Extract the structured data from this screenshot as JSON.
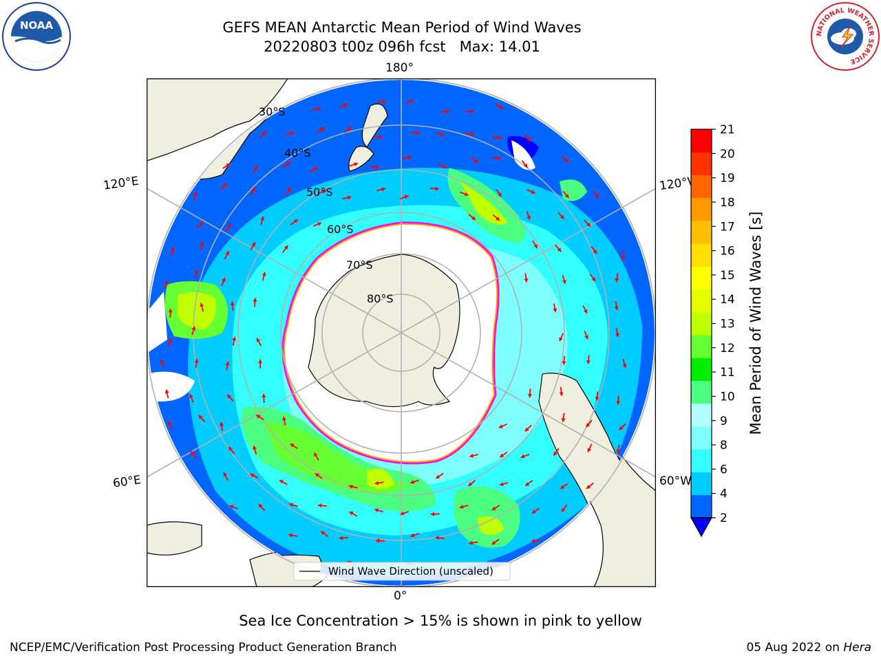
{
  "header": {
    "title_line1": "GEFS MEAN Antarctic Mean Period of Wind Waves",
    "title_line2": "20220803 t00z 096h fcst   Max: 14.01"
  },
  "logos": {
    "noaa_text": "NOAA",
    "nws_ring_text": "NATIONAL WEATHER SERVICE"
  },
  "map": {
    "projection": "south-polar-stereographic",
    "land_color": "#efefdf",
    "ocean_no_data_color": "#ffffff",
    "sea_ice_colors": [
      "#ff00ff",
      "#ff77ff",
      "#ffa500",
      "#ffff00"
    ],
    "arrow_color": "#ff0000",
    "grid_color": "#b0b0b0",
    "lon_labels": {
      "top": "180°",
      "bottom": "0°",
      "upper_left": "120°E",
      "lower_left": "60°E",
      "upper_right": "120°W",
      "lower_right": "60°W"
    },
    "lat_labels": [
      "30°S",
      "40°S",
      "50°S",
      "60°S",
      "70°S",
      "80°S"
    ],
    "legend_label": "Wind Wave Direction (unscaled)"
  },
  "colorbar": {
    "label": "Mean Period of Wind Waves [s]",
    "ticks": [
      "2",
      "4",
      "6",
      "8",
      "9",
      "10",
      "11",
      "12",
      "13",
      "14",
      "15",
      "16",
      "17",
      "18",
      "19",
      "20",
      "21"
    ],
    "colors": [
      "#0066ff",
      "#00ccff",
      "#33ffff",
      "#80ffff",
      "#b3ffff",
      "#4dff80",
      "#00ee00",
      "#66ff33",
      "#bfff00",
      "#e6ff00",
      "#ffff00",
      "#ffe000",
      "#ffbf00",
      "#ff9900",
      "#ff6600",
      "#ff3300",
      "#ff0000"
    ],
    "under_color": "#0000ff"
  },
  "footer": {
    "note": "Sea Ice Concentration > 15% is shown in pink to yellow",
    "left": "NCEP/EMC/Verification Post Processing Product Generation Branch",
    "right_date": "05 Aug 2022 on ",
    "right_host": "Hera"
  }
}
